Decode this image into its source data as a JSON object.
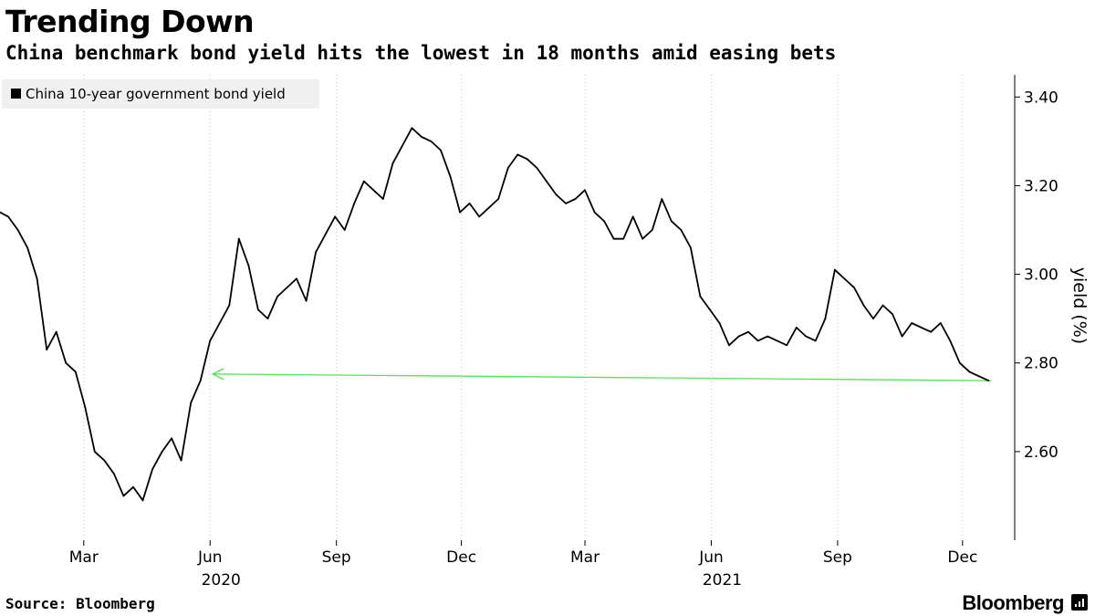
{
  "title": "Trending Down",
  "subtitle": "China benchmark bond yield hits the lowest in 18 months amid easing bets",
  "source": "Source: Bloomberg",
  "brand": "Bloomberg",
  "brand_icon": "bloomberg-bars-icon",
  "colors": {
    "line": "#000000",
    "arrow": "#57e05a",
    "grid": "#cccccc",
    "legend_bg": "#f0f0f0"
  },
  "chart_data": {
    "type": "line",
    "series": [
      {
        "name": "China 10-year government bond yield",
        "x": [
          "2019-12-31",
          "2020-01-06",
          "2020-01-13",
          "2020-01-20",
          "2020-01-27",
          "2020-02-03",
          "2020-02-10",
          "2020-02-17",
          "2020-02-24",
          "2020-03-02",
          "2020-03-09",
          "2020-03-16",
          "2020-03-23",
          "2020-03-30",
          "2020-04-06",
          "2020-04-13",
          "2020-04-20",
          "2020-04-27",
          "2020-05-04",
          "2020-05-11",
          "2020-05-18",
          "2020-05-25",
          "2020-06-01",
          "2020-06-08",
          "2020-06-15",
          "2020-06-22",
          "2020-06-29",
          "2020-07-06",
          "2020-07-13",
          "2020-07-20",
          "2020-07-27",
          "2020-08-03",
          "2020-08-10",
          "2020-08-17",
          "2020-08-24",
          "2020-08-31",
          "2020-09-07",
          "2020-09-14",
          "2020-09-21",
          "2020-09-28",
          "2020-10-05",
          "2020-10-12",
          "2020-10-19",
          "2020-10-26",
          "2020-11-02",
          "2020-11-09",
          "2020-11-16",
          "2020-11-23",
          "2020-11-30",
          "2020-12-07",
          "2020-12-14",
          "2020-12-21",
          "2020-12-28",
          "2021-01-04",
          "2021-01-11",
          "2021-01-18",
          "2021-01-25",
          "2021-02-01",
          "2021-02-08",
          "2021-02-15",
          "2021-02-22",
          "2021-03-01",
          "2021-03-08",
          "2021-03-15",
          "2021-03-22",
          "2021-03-29",
          "2021-04-05",
          "2021-04-12",
          "2021-04-19",
          "2021-04-26",
          "2021-05-03",
          "2021-05-10",
          "2021-05-17",
          "2021-05-24",
          "2021-05-31",
          "2021-06-07",
          "2021-06-14",
          "2021-06-21",
          "2021-06-28",
          "2021-07-05",
          "2021-07-12",
          "2021-07-19",
          "2021-07-26",
          "2021-08-02",
          "2021-08-09",
          "2021-08-16",
          "2021-08-23",
          "2021-08-30",
          "2021-09-06",
          "2021-09-13",
          "2021-09-20",
          "2021-09-27",
          "2021-10-04",
          "2021-10-11",
          "2021-10-18",
          "2021-10-25",
          "2021-11-01",
          "2021-11-08",
          "2021-11-15",
          "2021-11-22",
          "2021-11-29",
          "2021-12-06",
          "2021-12-13",
          "2021-12-20"
        ],
        "values": [
          3.14,
          3.13,
          3.1,
          3.06,
          2.99,
          2.83,
          2.87,
          2.8,
          2.78,
          2.7,
          2.6,
          2.58,
          2.55,
          2.5,
          2.52,
          2.49,
          2.56,
          2.6,
          2.63,
          2.58,
          2.71,
          2.76,
          2.85,
          2.89,
          2.93,
          3.08,
          3.02,
          2.92,
          2.9,
          2.95,
          2.97,
          2.99,
          2.94,
          3.05,
          3.09,
          3.13,
          3.1,
          3.16,
          3.21,
          3.19,
          3.17,
          3.25,
          3.29,
          3.33,
          3.31,
          3.3,
          3.28,
          3.22,
          3.14,
          3.16,
          3.13,
          3.15,
          3.17,
          3.24,
          3.27,
          3.26,
          3.24,
          3.21,
          3.18,
          3.16,
          3.17,
          3.19,
          3.14,
          3.12,
          3.08,
          3.08,
          3.13,
          3.08,
          3.1,
          3.17,
          3.12,
          3.1,
          3.06,
          2.95,
          2.92,
          2.89,
          2.84,
          2.86,
          2.87,
          2.85,
          2.86,
          2.85,
          2.84,
          2.88,
          2.86,
          2.85,
          2.9,
          3.01,
          2.99,
          2.97,
          2.93,
          2.9,
          2.93,
          2.91,
          2.86,
          2.89,
          2.88,
          2.87,
          2.89,
          2.85,
          2.8,
          2.78,
          2.77,
          2.76
        ]
      }
    ],
    "ylabel": "yield (%)",
    "ylim": [
      2.4,
      3.45
    ],
    "yticks": [
      2.6,
      2.8,
      3.0,
      3.2,
      3.4
    ],
    "ytick_labels": [
      "2.60",
      "2.80",
      "3.00",
      "3.20",
      "3.40"
    ],
    "xlim": [
      "2019-12-31",
      "2021-12-31"
    ],
    "xticks": [
      {
        "date": "2020-03-01",
        "label": "Mar"
      },
      {
        "date": "2020-06-01",
        "label": "Jun"
      },
      {
        "date": "2020-09-01",
        "label": "Sep"
      },
      {
        "date": "2020-12-01",
        "label": "Dec"
      },
      {
        "date": "2021-03-01",
        "label": "Mar"
      },
      {
        "date": "2021-06-01",
        "label": "Jun"
      },
      {
        "date": "2021-09-01",
        "label": "Sep"
      },
      {
        "date": "2021-12-01",
        "label": "Dec"
      }
    ],
    "year_labels": [
      {
        "date": "2020-06-01",
        "label": "2020"
      },
      {
        "date": "2021-06-01",
        "label": "2021"
      }
    ],
    "legend_position": "top-left",
    "grid": "vertical-dotted",
    "y_axis_side": "right",
    "annotation": {
      "type": "arrow",
      "from_date": "2021-12-20",
      "from_value": 2.76,
      "to_date": "2020-06-03",
      "to_value": 2.775
    }
  }
}
